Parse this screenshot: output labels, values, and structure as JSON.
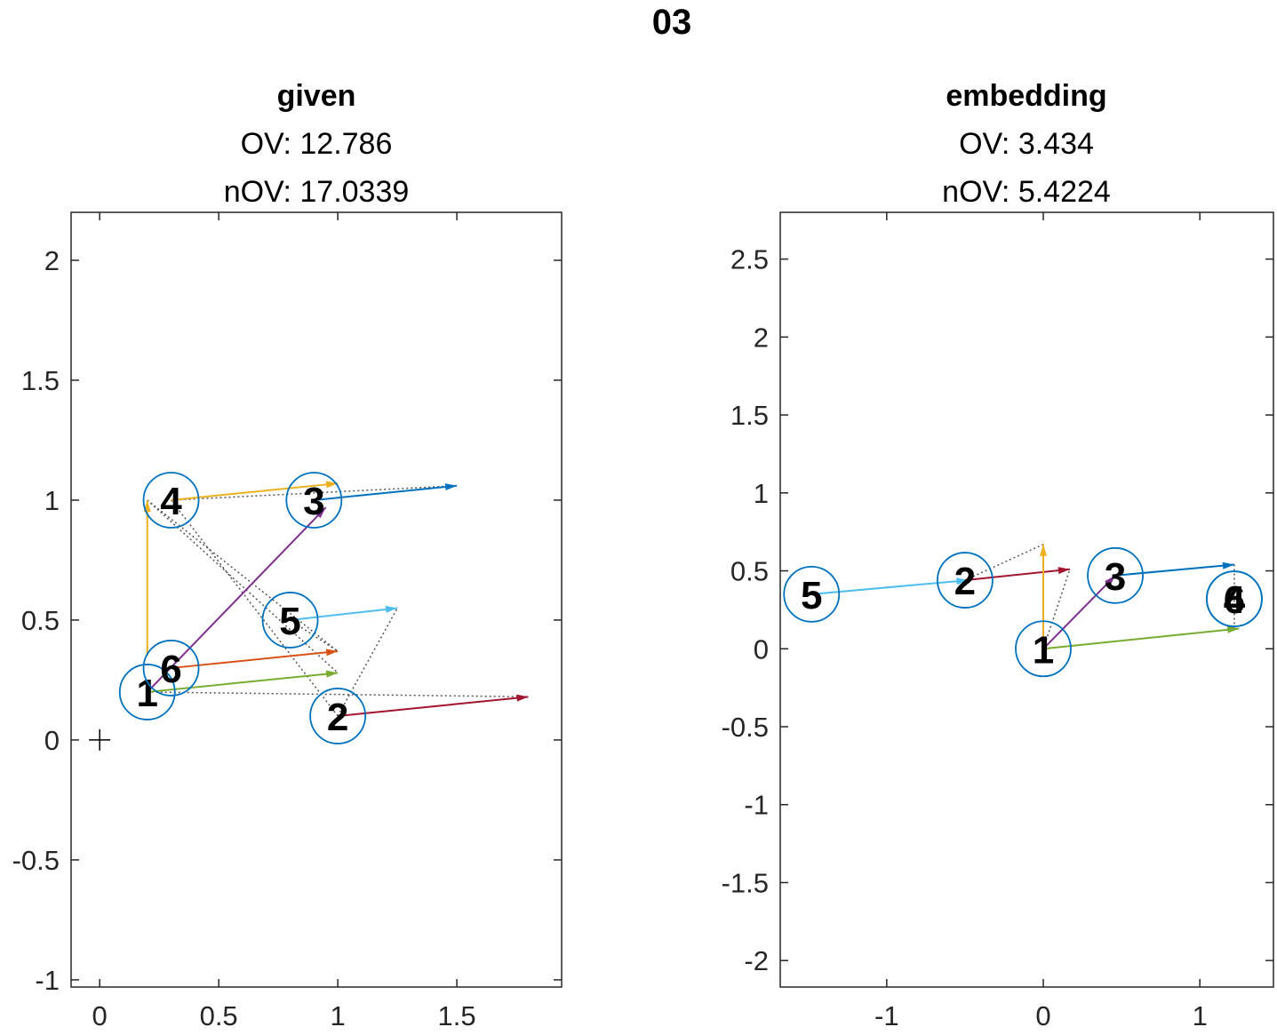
{
  "figure_title": "03",
  "chart_data": [
    {
      "type": "scatter",
      "title": "given",
      "subtitle_lines": [
        {
          "label": "OV:",
          "value": "12.786"
        },
        {
          "label": "nOV:",
          "value": "17.0339"
        }
      ],
      "xlim": [
        -0.12,
        1.94
      ],
      "ylim": [
        -1.03,
        2.2
      ],
      "xticks": [
        0,
        0.5,
        1,
        1.5
      ],
      "xtick_labels": [
        "0",
        "0.5",
        "1",
        "1.5"
      ],
      "yticks": [
        -1,
        -0.5,
        0,
        0.5,
        1,
        1.5,
        2
      ],
      "ytick_labels": [
        "-1",
        "-0.5",
        "0",
        "0.5",
        "1",
        "1.5",
        "2"
      ],
      "grid": false,
      "origin_marker": {
        "x": 0,
        "y": 0,
        "symbol": "+"
      },
      "nodes": [
        {
          "label": "1",
          "x": 0.2,
          "y": 0.2
        },
        {
          "label": "2",
          "x": 1.0,
          "y": 0.1
        },
        {
          "label": "3",
          "x": 0.9,
          "y": 1.0
        },
        {
          "label": "4",
          "x": 0.3,
          "y": 1.0
        },
        {
          "label": "5",
          "x": 0.8,
          "y": 0.5
        },
        {
          "label": "6",
          "x": 0.3,
          "y": 0.3
        }
      ],
      "arrows": [
        {
          "from": [
            0.2,
            0.2
          ],
          "to": [
            1.0,
            0.28
          ],
          "color": "#77ac30"
        },
        {
          "from": [
            1.0,
            0.1
          ],
          "to": [
            1.8,
            0.18
          ],
          "color": "#a2142f"
        },
        {
          "from": [
            0.9,
            1.0
          ],
          "to": [
            1.5,
            1.06
          ],
          "color": "#0072bd"
        },
        {
          "from": [
            0.3,
            1.0
          ],
          "to": [
            1.0,
            1.07
          ],
          "color": "#edb120"
        },
        {
          "from": [
            0.8,
            0.5
          ],
          "to": [
            1.25,
            0.55
          ],
          "color": "#4dbeee"
        },
        {
          "from": [
            0.3,
            0.3
          ],
          "to": [
            1.0,
            0.37
          ],
          "color": "#d95319"
        },
        {
          "from": [
            0.2,
            0.35
          ],
          "to": [
            0.2,
            1.0
          ],
          "color": "#edb120"
        },
        {
          "from": [
            0.2,
            0.2
          ],
          "to": [
            0.95,
            0.97
          ],
          "color": "#7e2f8e"
        }
      ],
      "dotted_links": [
        {
          "from": [
            0.2,
            0.2
          ],
          "to": [
            1.8,
            0.18
          ]
        },
        {
          "from": [
            0.3,
            1.0
          ],
          "to": [
            1.5,
            1.06
          ]
        },
        {
          "from": [
            0.2,
            1.0
          ],
          "to": [
            1.0,
            0.28
          ]
        },
        {
          "from": [
            0.2,
            1.0
          ],
          "to": [
            1.0,
            0.37
          ]
        },
        {
          "from": [
            0.3,
            1.0
          ],
          "to": [
            1.0,
            0.1
          ]
        },
        {
          "from": [
            1.0,
            0.1
          ],
          "to": [
            1.25,
            0.55
          ]
        },
        {
          "from": [
            0.8,
            0.5
          ],
          "to": [
            1.0,
            0.37
          ]
        }
      ]
    },
    {
      "type": "scatter",
      "title": "embedding",
      "subtitle_lines": [
        {
          "label": "OV:",
          "value": "3.434"
        },
        {
          "label": "nOV:",
          "value": "5.4224"
        }
      ],
      "xlim": [
        -1.68,
        1.47
      ],
      "ylim": [
        -2.17,
        2.8
      ],
      "xticks": [
        -1,
        0,
        1
      ],
      "xtick_labels": [
        "-1",
        "0",
        "1"
      ],
      "yticks": [
        -2,
        -1.5,
        -1,
        -0.5,
        0,
        0.5,
        1,
        1.5,
        2,
        2.5
      ],
      "ytick_labels": [
        "-2",
        "-1.5",
        "-1",
        "-0.5",
        "0",
        "0.5",
        "1",
        "1.5",
        "2",
        "2.5"
      ],
      "grid": false,
      "nodes": [
        {
          "label": "1",
          "x": 0.0,
          "y": 0.0
        },
        {
          "label": "2",
          "x": -0.5,
          "y": 0.44
        },
        {
          "label": "3",
          "x": 0.46,
          "y": 0.47
        },
        {
          "label": "4",
          "x": 1.22,
          "y": 0.32
        },
        {
          "label": "5",
          "x": -1.48,
          "y": 0.35
        },
        {
          "label": "6",
          "x": 1.22,
          "y": 0.32
        }
      ],
      "arrows": [
        {
          "from": [
            -1.48,
            0.35
          ],
          "to": [
            -0.48,
            0.44
          ],
          "color": "#4dbeee"
        },
        {
          "from": [
            -0.5,
            0.44
          ],
          "to": [
            0.17,
            0.51
          ],
          "color": "#a2142f"
        },
        {
          "from": [
            0.46,
            0.47
          ],
          "to": [
            1.22,
            0.54
          ],
          "color": "#0072bd"
        },
        {
          "from": [
            0.0,
            0.0
          ],
          "to": [
            1.25,
            0.13
          ],
          "color": "#77ac30"
        },
        {
          "from": [
            0.0,
            0.0
          ],
          "to": [
            0.0,
            0.67
          ],
          "color": "#edb120"
        },
        {
          "from": [
            0.0,
            0.0
          ],
          "to": [
            0.46,
            0.47
          ],
          "color": "#7e2f8e"
        }
      ],
      "dotted_links": [
        {
          "from": [
            -0.5,
            0.44
          ],
          "to": [
            0.0,
            0.67
          ]
        },
        {
          "from": [
            0.0,
            0.0
          ],
          "to": [
            0.17,
            0.51
          ]
        },
        {
          "from": [
            1.22,
            0.54
          ],
          "to": [
            1.22,
            0.13
          ]
        }
      ]
    }
  ]
}
